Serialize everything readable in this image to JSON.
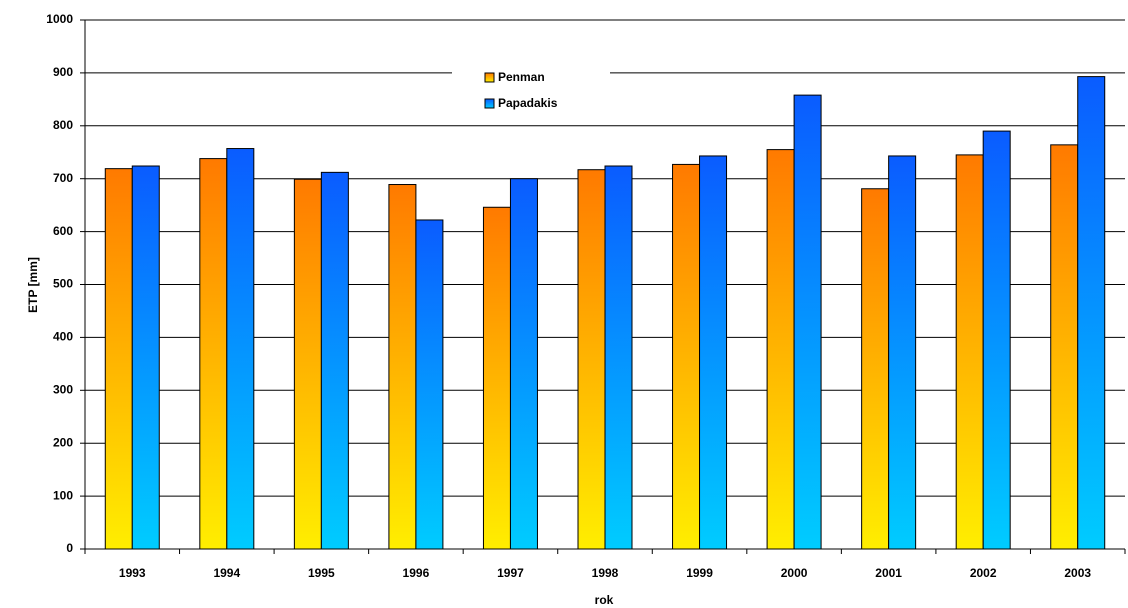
{
  "chart_data": {
    "type": "bar",
    "x_label": "rok",
    "y_label": "ETP [mm]",
    "categories": [
      "1993",
      "1994",
      "1995",
      "1996",
      "1997",
      "1998",
      "1999",
      "2000",
      "2001",
      "2002",
      "2003"
    ],
    "series": [
      {
        "name": "Penman",
        "color": "#ff7a00",
        "values": [
          719,
          738,
          699,
          689,
          646,
          717,
          727,
          755,
          681,
          745,
          764
        ]
      },
      {
        "name": "Papadakis",
        "color": "#0a5cff",
        "values": [
          724,
          757,
          712,
          622,
          700,
          724,
          743,
          858,
          743,
          790,
          893
        ]
      }
    ],
    "ylim": [
      0,
      1000
    ],
    "yticks": [
      0,
      100,
      200,
      300,
      400,
      500,
      600,
      700,
      800,
      900,
      1000
    ],
    "grid": true,
    "legend": "top"
  }
}
